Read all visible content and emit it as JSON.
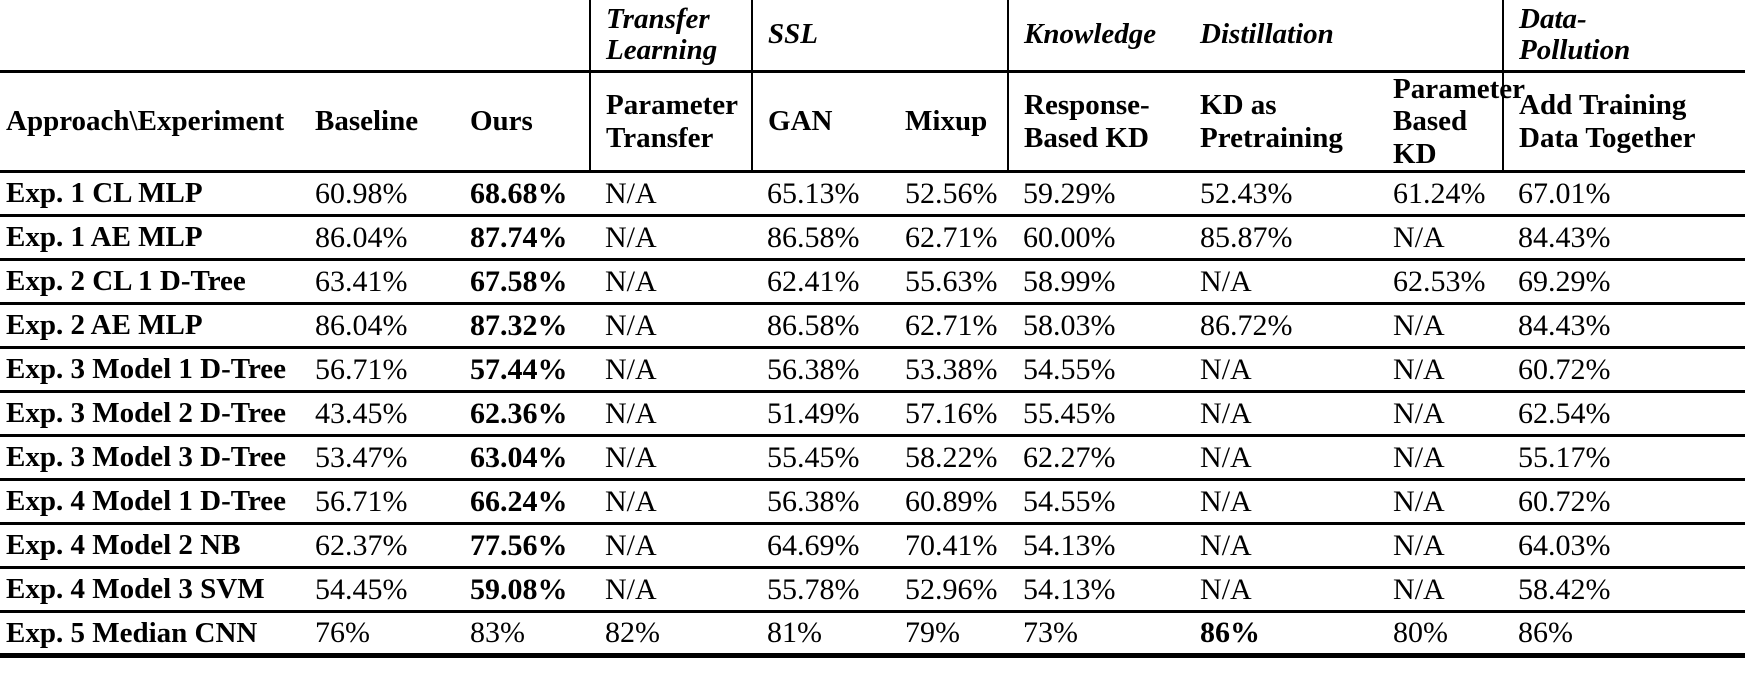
{
  "table": {
    "group_header": [
      {
        "text": "",
        "span": 3,
        "sep": false
      },
      {
        "text": "Transfer\nLearning",
        "span": 1,
        "sep": true
      },
      {
        "text": "SSL",
        "span": 2,
        "sep": true
      },
      {
        "text": "Knowledge",
        "span": 1,
        "sep": true
      },
      {
        "text": "Distillation",
        "span": 2,
        "sep": false
      },
      {
        "text": "Data-\nPollution",
        "span": 1,
        "sep": true
      }
    ],
    "column_header": [
      {
        "text": "Approach\\Experiment",
        "sep": false
      },
      {
        "text": "Baseline",
        "sep": false
      },
      {
        "text": "Ours",
        "sep": false
      },
      {
        "text": "Parameter\nTransfer",
        "sep": true
      },
      {
        "text": "GAN",
        "sep": true
      },
      {
        "text": "Mixup",
        "sep": false
      },
      {
        "text": "Response-\nBased KD",
        "sep": true
      },
      {
        "text": "KD as\nPretraining",
        "sep": false
      },
      {
        "text": "Parameter\nBased KD",
        "sep": false
      },
      {
        "text": "Add Training\nData Together",
        "sep": true
      }
    ],
    "rows": [
      {
        "label": "Exp. 1 CL MLP",
        "values": [
          "60.98%",
          "68.68%",
          "N/A",
          "65.13%",
          "52.56%",
          "59.29%",
          "52.43%",
          "61.24%",
          "67.01%"
        ],
        "bold_value_index": 1
      },
      {
        "label": "Exp. 1 AE MLP",
        "values": [
          "86.04%",
          "87.74%",
          "N/A",
          "86.58%",
          "62.71%",
          "60.00%",
          "85.87%",
          "N/A",
          "84.43%"
        ],
        "bold_value_index": 1
      },
      {
        "label": "Exp. 2 CL 1 D-Tree",
        "values": [
          "63.41%",
          "67.58%",
          "N/A",
          "62.41%",
          "55.63%",
          "58.99%",
          "N/A",
          "62.53%",
          "69.29%"
        ],
        "bold_value_index": 1
      },
      {
        "label": "Exp. 2 AE MLP",
        "values": [
          "86.04%",
          "87.32%",
          "N/A",
          "86.58%",
          "62.71%",
          "58.03%",
          "86.72%",
          "N/A",
          "84.43%"
        ],
        "bold_value_index": 1
      },
      {
        "label": "Exp. 3 Model 1 D-Tree",
        "values": [
          "56.71%",
          "57.44%",
          "N/A",
          "56.38%",
          "53.38%",
          "54.55%",
          "N/A",
          "N/A",
          "60.72%"
        ],
        "bold_value_index": 1
      },
      {
        "label": "Exp. 3 Model 2 D-Tree",
        "values": [
          "43.45%",
          "62.36%",
          "N/A",
          "51.49%",
          "57.16%",
          "55.45%",
          "N/A",
          "N/A",
          "62.54%"
        ],
        "bold_value_index": 1
      },
      {
        "label": "Exp. 3 Model 3 D-Tree",
        "values": [
          "53.47%",
          "63.04%",
          "N/A",
          "55.45%",
          "58.22%",
          "62.27%",
          "N/A",
          "N/A",
          "55.17%"
        ],
        "bold_value_index": 1
      },
      {
        "label": "Exp. 4 Model 1 D-Tree",
        "values": [
          "56.71%",
          "66.24%",
          "N/A",
          "56.38%",
          "60.89%",
          "54.55%",
          "N/A",
          "N/A",
          "60.72%"
        ],
        "bold_value_index": 1
      },
      {
        "label": "Exp. 4 Model 2 NB",
        "values": [
          "62.37%",
          "77.56%",
          "N/A",
          "64.69%",
          "70.41%",
          "54.13%",
          "N/A",
          "N/A",
          "64.03%"
        ],
        "bold_value_index": 1
      },
      {
        "label": "Exp. 4 Model 3 SVM",
        "values": [
          "54.45%",
          "59.08%",
          "N/A",
          "55.78%",
          "52.96%",
          "54.13%",
          "N/A",
          "N/A",
          "58.42%"
        ],
        "bold_value_index": 1
      },
      {
        "label": "Exp. 5 Median CNN",
        "values": [
          "76%",
          "83%",
          "82%",
          "81%",
          "79%",
          "73%",
          "86%",
          "80%",
          "86%"
        ],
        "bold_value_index": 6
      }
    ]
  }
}
